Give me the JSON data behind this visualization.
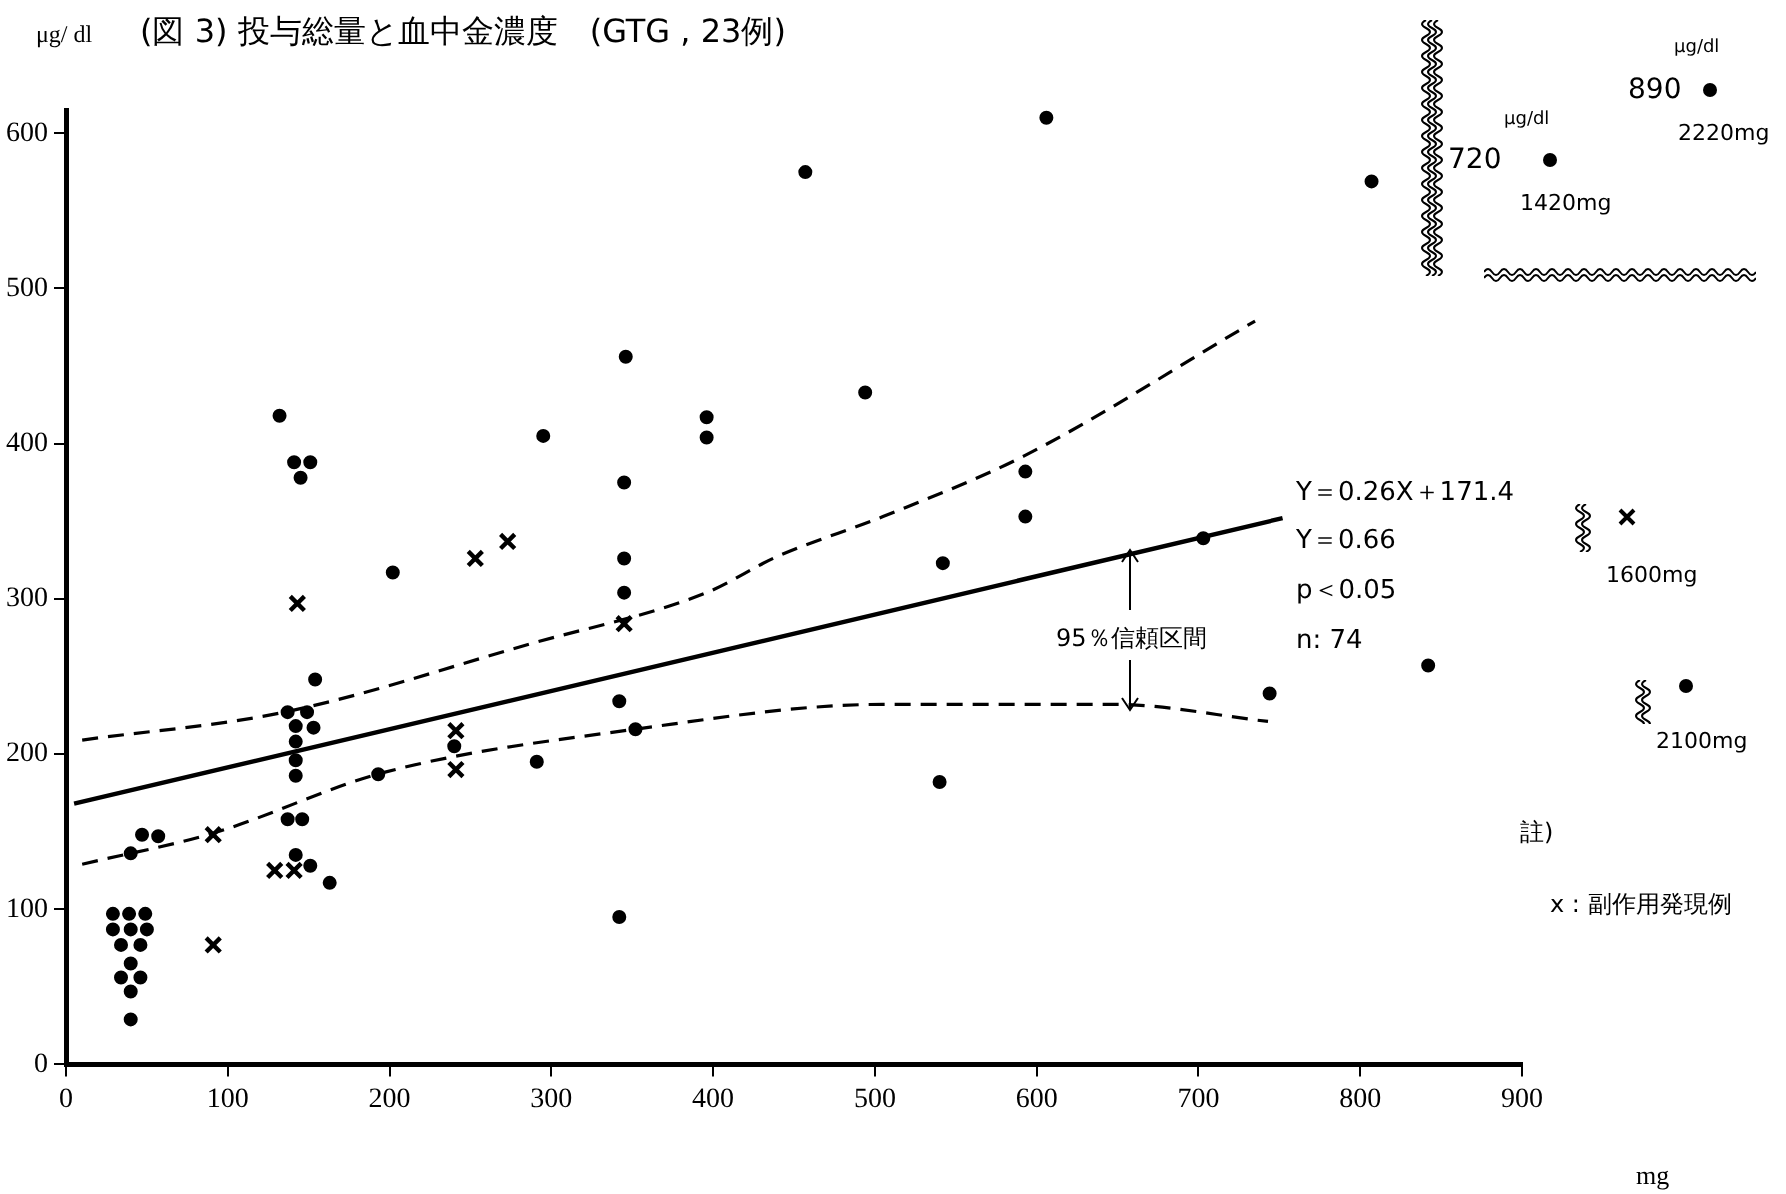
{
  "chart_data": {
    "type": "scatter",
    "title": "(図 3) 投与総量と血中金濃度　(GTG , 23例)",
    "xlabel": "mg",
    "ylabel": "μg/ dl",
    "xlim": [
      0,
      900
    ],
    "ylim": [
      0,
      615
    ],
    "xticks": [
      0,
      100,
      200,
      300,
      400,
      500,
      600,
      700,
      800,
      900
    ],
    "yticks": [
      0,
      100,
      200,
      300,
      400,
      500,
      600
    ],
    "grid": false,
    "legend": false,
    "series": [
      {
        "marker": "circle",
        "color": "#000000",
        "x": [
          132,
          141,
          151,
          145,
          202,
          295,
          346,
          345,
          345,
          396,
          396,
          457,
          494,
          606,
          807,
          593,
          593,
          542,
          703,
          540,
          744,
          842,
          345,
          342,
          352,
          342,
          291,
          240,
          193,
          154,
          137,
          149,
          142,
          153,
          142,
          142,
          142,
          137,
          146,
          142,
          151,
          163,
          40,
          47,
          57,
          29,
          39,
          49,
          29,
          40,
          50,
          34,
          46,
          40,
          34,
          46,
          40,
          40
        ],
        "values": [
          418,
          388,
          388,
          378,
          317,
          405,
          456,
          375,
          326,
          417,
          404,
          575,
          433,
          610,
          569,
          382,
          353,
          323,
          339,
          182,
          239,
          257,
          304,
          234,
          216,
          95,
          195,
          205,
          187,
          248,
          227,
          227,
          218,
          217,
          208,
          196,
          186,
          158,
          158,
          135,
          128,
          117,
          136,
          148,
          147,
          97,
          97,
          97,
          87,
          87,
          87,
          77,
          77,
          65,
          56,
          56,
          47,
          29
        ]
      },
      {
        "marker": "cross",
        "color": "#000000",
        "x": [
          253,
          273,
          143,
          345,
          241,
          241,
          91,
          91,
          129,
          141
        ],
        "values": [
          326,
          337,
          297,
          284,
          215,
          190,
          148,
          77,
          125,
          125
        ]
      },
      {
        "type": "line",
        "line_style": "solid",
        "color": "#000000",
        "x": [
          5,
          752
        ],
        "values": [
          168,
          352
        ]
      },
      {
        "type": "line",
        "line_style": "dashed",
        "color": "#000000",
        "x": [
          10,
          135,
          287,
          396,
          439,
          505,
          592,
          735
        ],
        "values": [
          209,
          227,
          271,
          304,
          327,
          353,
          392,
          479
        ]
      },
      {
        "type": "line",
        "line_style": "dashed",
        "color": "#000000",
        "x": [
          10,
          91,
          196,
          352,
          505,
          648,
          743
        ],
        "values": [
          129,
          149,
          188,
          216,
          232,
          232,
          221
        ]
      }
    ],
    "annotations": [
      "Y＝0.26X＋171.4",
      "Y＝0.66",
      "p＜0.05",
      "n: 74",
      "95％信頼区間",
      "註)",
      "x :  副作用発現例",
      "720",
      "μg/dl",
      "1420mg",
      "890",
      "μg/dl",
      "2220mg",
      "1600mg",
      "2100mg"
    ]
  }
}
